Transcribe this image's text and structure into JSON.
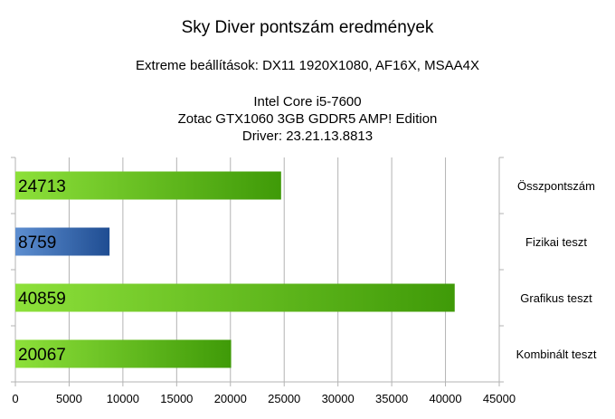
{
  "chart_data": {
    "type": "bar",
    "orientation": "horizontal",
    "title": "Sky Diver pontszám eredmények",
    "subtitle": "Extreme beállítások: DX11 1920X1080, AF16X, MSAA4X",
    "info_lines": [
      "Intel Core i5-7600",
      "Zotac GTX1060 3GB GDDR5 AMP! Edition",
      "Driver: 23.21.13.8813"
    ],
    "categories": [
      "Összpontszám",
      "Fizikai teszt",
      "Grafikus teszt",
      "Kombinált teszt"
    ],
    "values": [
      24713,
      8759,
      40859,
      20067
    ],
    "value_labels": [
      "24713",
      "8759",
      "40859",
      "20067"
    ],
    "bar_colors": [
      "green",
      "blue",
      "green",
      "green"
    ],
    "xlim": [
      0,
      45000
    ],
    "x_ticks": [
      0,
      5000,
      10000,
      15000,
      20000,
      25000,
      30000,
      35000,
      40000,
      45000
    ],
    "x_tick_labels": [
      "0",
      "5000",
      "10000",
      "15000",
      "20000",
      "25000",
      "30000",
      "35000",
      "40000",
      "45000"
    ],
    "grid": true,
    "category_axis_position": "right",
    "legend": "none",
    "colors": {
      "green_light": "#8de03a",
      "green_dark": "#3f9a08",
      "blue_light": "#5d8ed0",
      "blue_dark": "#1f4d92",
      "grid": "#b3b3b3"
    }
  }
}
